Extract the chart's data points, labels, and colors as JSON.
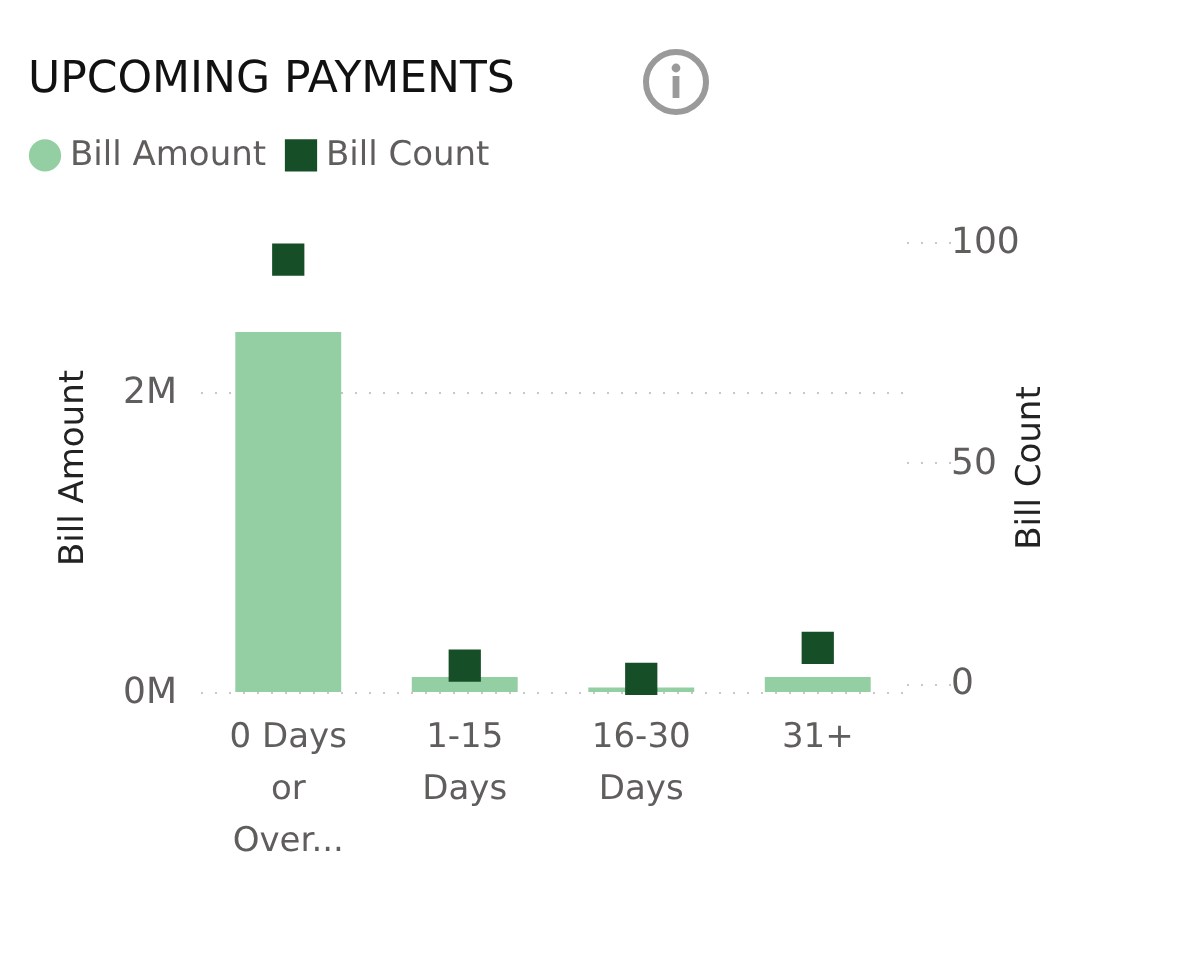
{
  "chart_data": {
    "type": "bar",
    "title": "UPCOMING PAYMENTS",
    "xlabel": null,
    "ylabel": "Bill Amount",
    "y2label": "Bill Count",
    "categories": [
      "0 Days or Over...",
      "1-15 Days",
      "16-30 Days",
      "31+"
    ],
    "series": [
      {
        "name": "Bill Amount",
        "color": "#93cfa3",
        "values": [
          2400000,
          100000,
          30000,
          100000
        ]
      },
      {
        "name": "Bill Count",
        "type": "scatter",
        "axis": "y2",
        "marker": "square",
        "color": "#164f27",
        "values": [
          96,
          4,
          1,
          8
        ]
      }
    ],
    "ylim": [
      0,
      3000000
    ],
    "yticks": [
      {
        "value": 0,
        "label": "0M"
      },
      {
        "value": 2000000,
        "label": "2M"
      }
    ],
    "y2lim": [
      -2,
      100
    ],
    "y2ticks": [
      0,
      50,
      100
    ],
    "grid": "y",
    "legend": "top left"
  }
}
